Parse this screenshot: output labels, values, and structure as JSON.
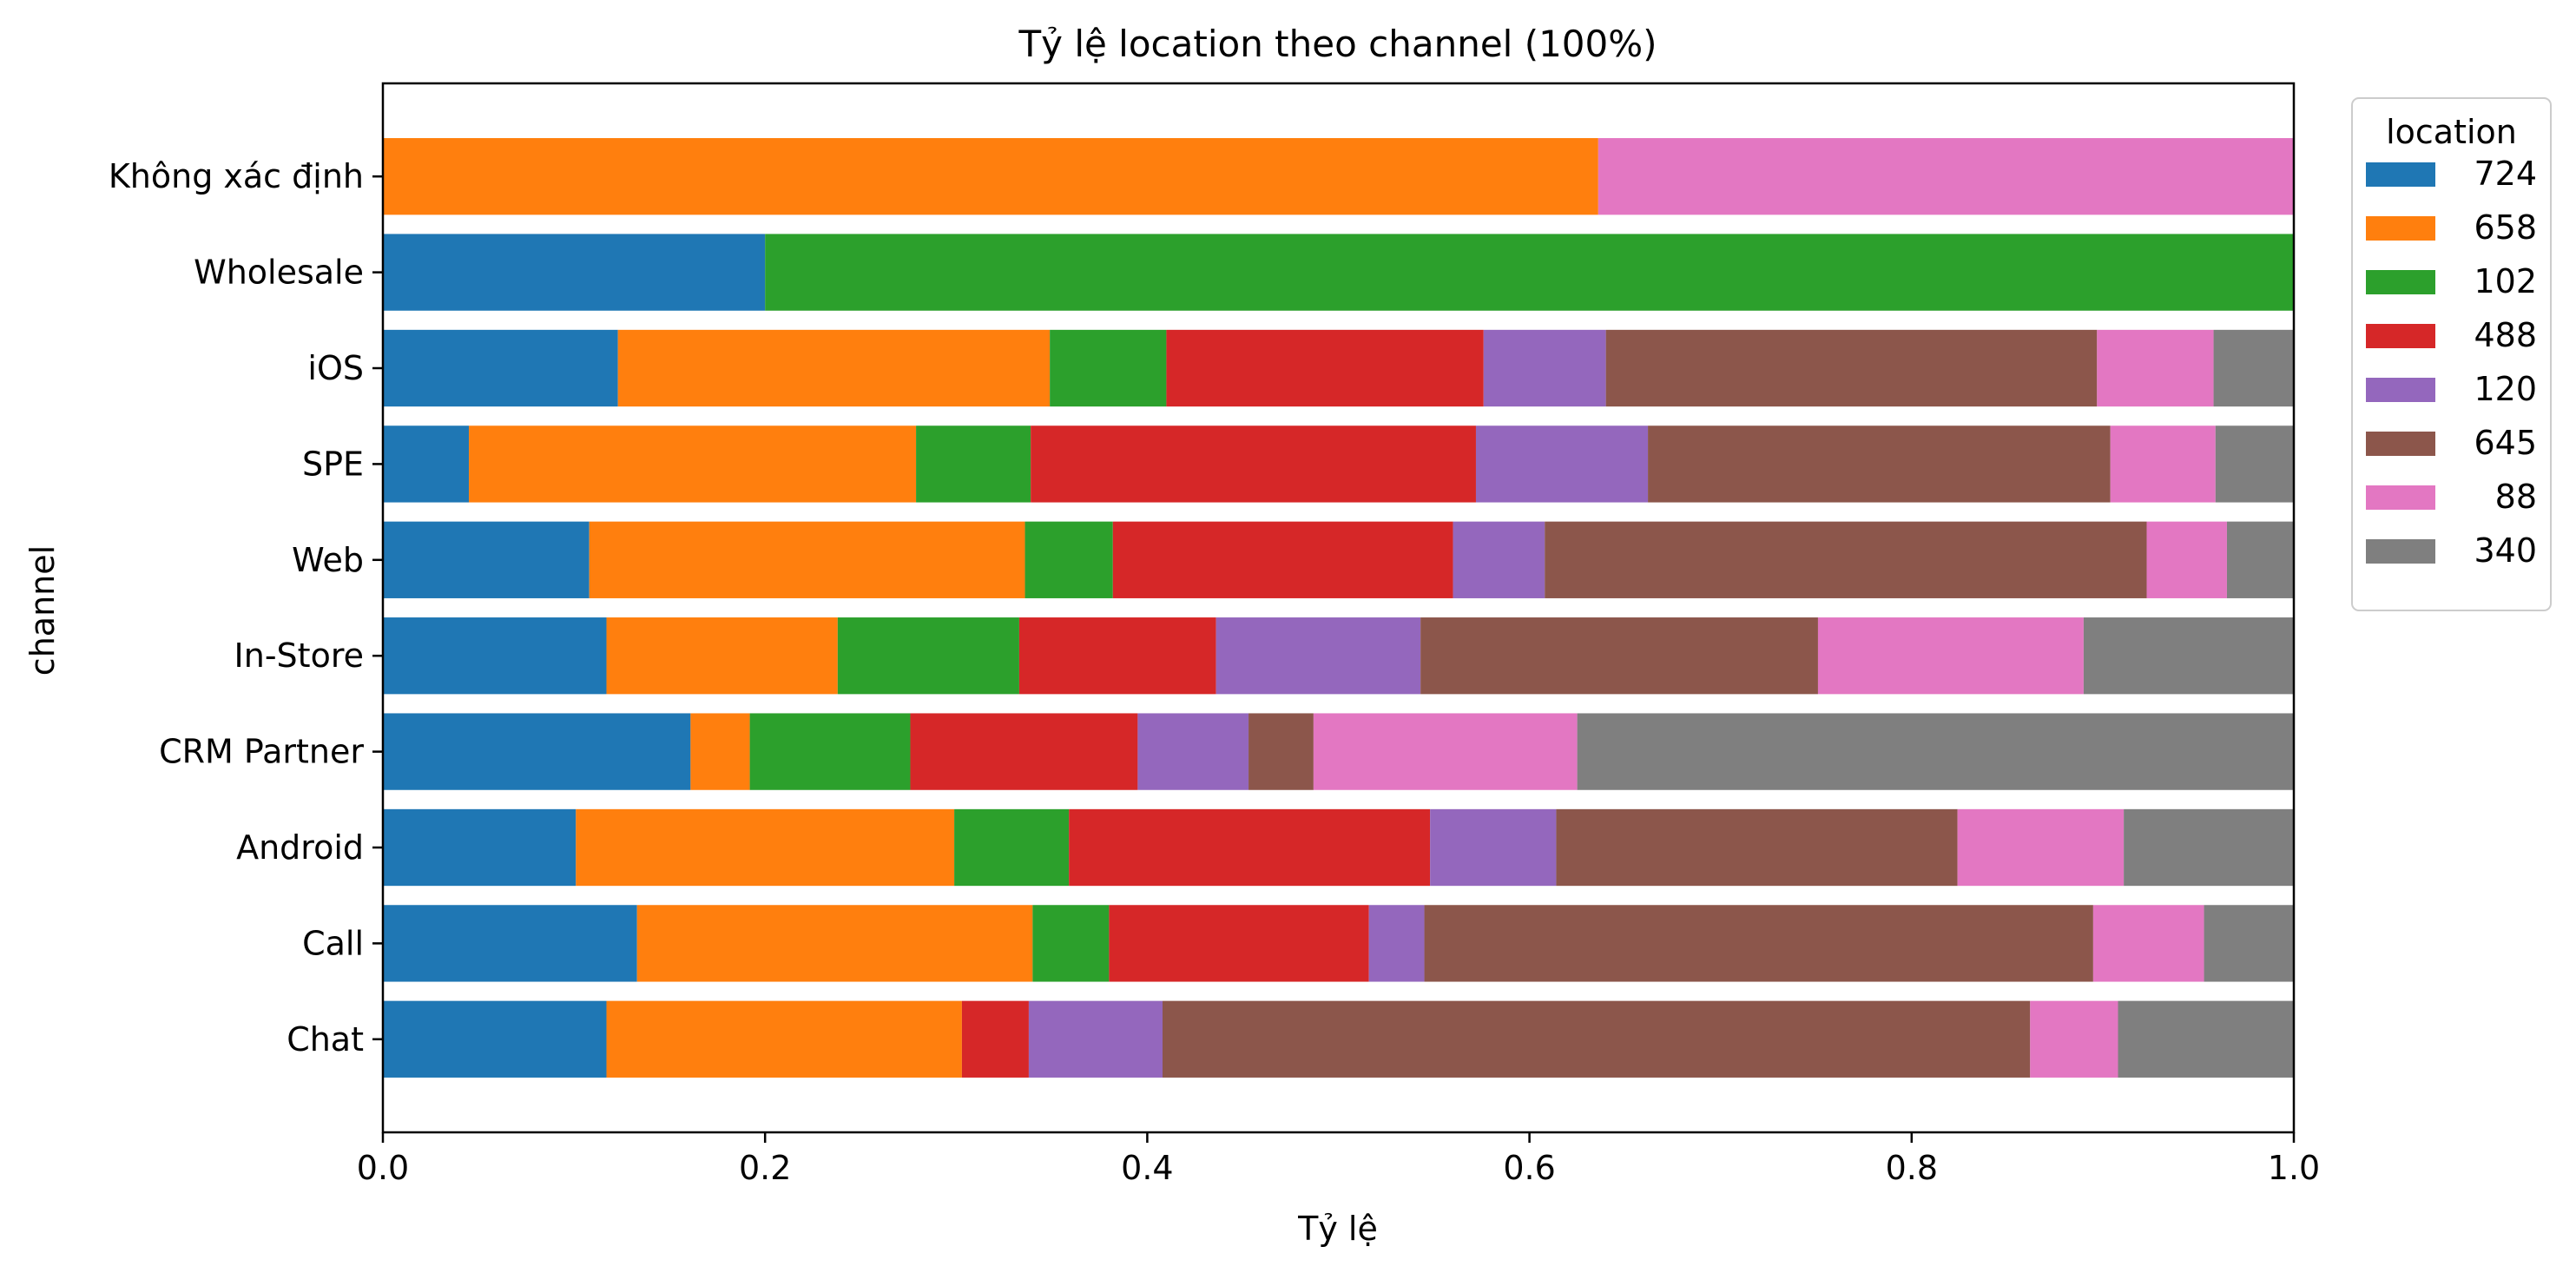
{
  "chart_data": {
    "type": "bar",
    "orientation": "horizontal",
    "stacked": true,
    "title": "Tỷ lệ location theo channel (100%)",
    "xlabel": "Tỷ lệ",
    "ylabel": "channel",
    "xlim": [
      0,
      1
    ],
    "xticks": [
      "0.0",
      "0.2",
      "0.4",
      "0.6",
      "0.8",
      "1.0"
    ],
    "grid": false,
    "legend": {
      "title": "location",
      "position": "outside-top-right"
    },
    "categories": [
      "Không xác định",
      "Wholesale",
      "iOS",
      "SPE",
      "Web",
      "In-Store",
      "CRM Partner",
      "Android",
      "Call",
      "Chat"
    ],
    "series": [
      {
        "name": "724",
        "color": "#1f77b4",
        "values": [
          0.0,
          0.2,
          0.123,
          0.045,
          0.108,
          0.117,
          0.161,
          0.101,
          0.133,
          0.117
        ]
      },
      {
        "name": "658",
        "color": "#ff7f0e",
        "values": [
          0.636,
          0.0,
          0.226,
          0.234,
          0.228,
          0.121,
          0.031,
          0.198,
          0.207,
          0.186
        ]
      },
      {
        "name": "102",
        "color": "#2ca02c",
        "values": [
          0.0,
          0.8,
          0.061,
          0.06,
          0.046,
          0.095,
          0.084,
          0.06,
          0.04,
          0.0
        ]
      },
      {
        "name": "488",
        "color": "#d62728",
        "values": [
          0.0,
          0.0,
          0.166,
          0.233,
          0.178,
          0.103,
          0.119,
          0.189,
          0.136,
          0.035
        ]
      },
      {
        "name": "120",
        "color": "#9467bd",
        "values": [
          0.0,
          0.0,
          0.064,
          0.09,
          0.048,
          0.107,
          0.058,
          0.066,
          0.029,
          0.07
        ]
      },
      {
        "name": "645",
        "color": "#8c564b",
        "values": [
          0.0,
          0.0,
          0.257,
          0.242,
          0.315,
          0.208,
          0.034,
          0.21,
          0.35,
          0.454
        ]
      },
      {
        "name": "88",
        "color": "#e377c2",
        "values": [
          0.364,
          0.0,
          0.061,
          0.055,
          0.042,
          0.139,
          0.138,
          0.087,
          0.058,
          0.046
        ]
      },
      {
        "name": "340",
        "color": "#7f7f7f",
        "values": [
          0.0,
          0.0,
          0.042,
          0.041,
          0.035,
          0.11,
          0.375,
          0.089,
          0.047,
          0.092
        ]
      }
    ]
  }
}
